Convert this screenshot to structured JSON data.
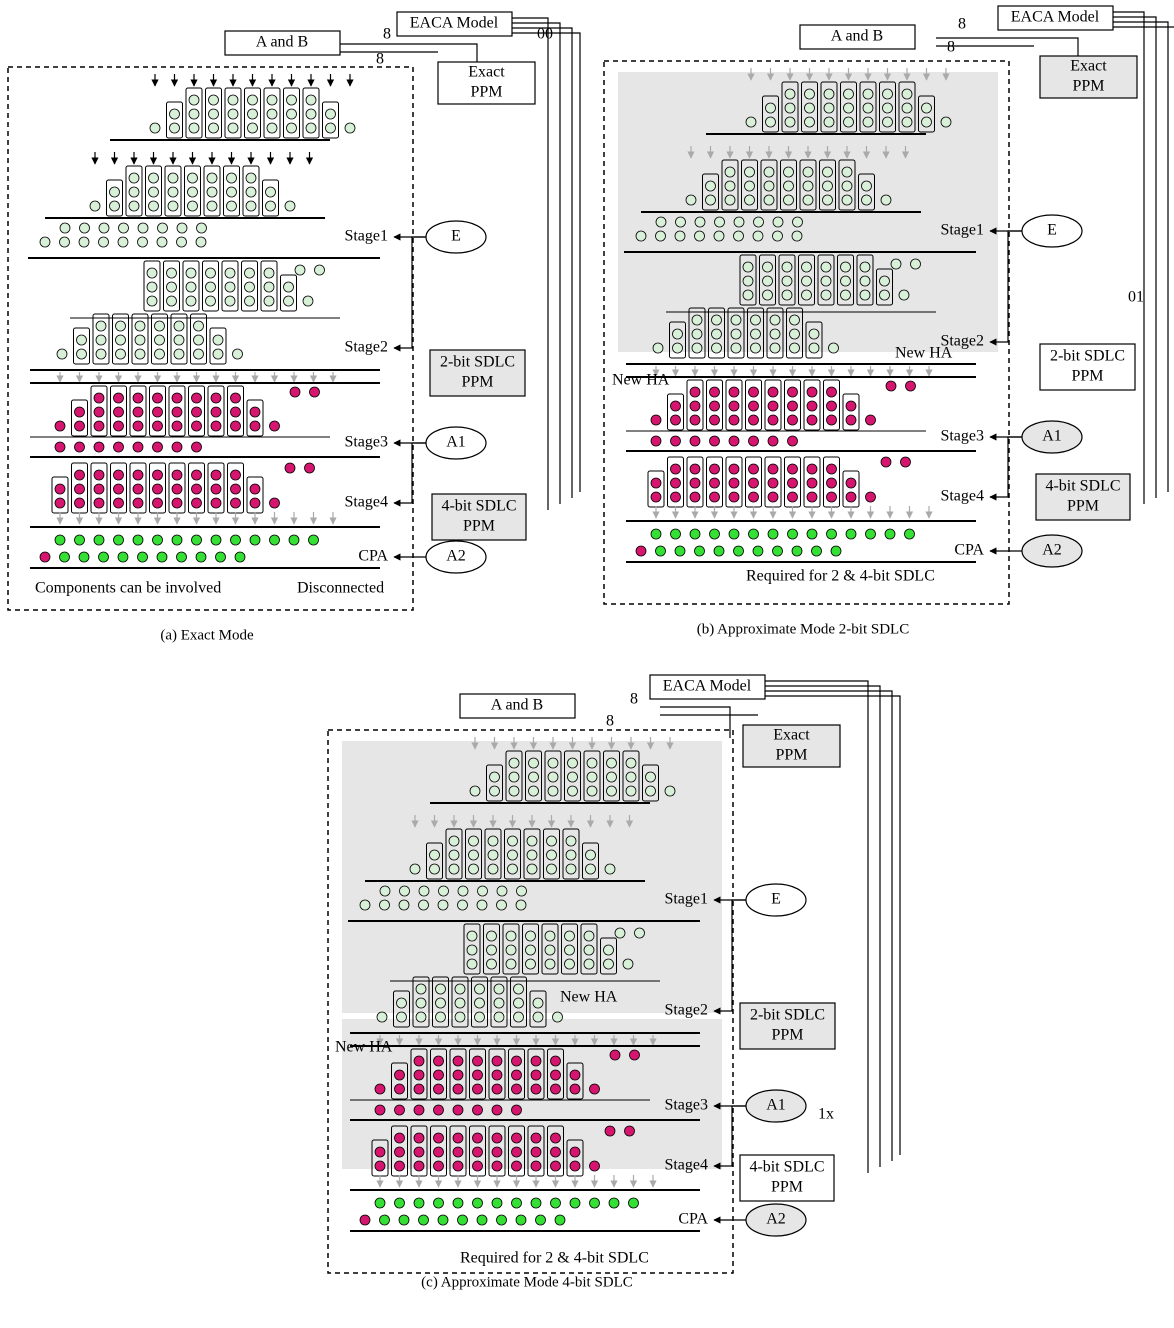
{
  "panels": [
    {
      "caption": "(a)  Exact Mode",
      "input": "A and B",
      "model": "EACA Model",
      "bus_widths": [
        "8",
        "8"
      ],
      "mode_code": "00",
      "exact_ppm": [
        "Exact",
        "PPM"
      ],
      "sdlc2_ppm": [
        "2-bit SDLC",
        "PPM"
      ],
      "sdlc4_ppm": [
        "4-bit SDLC",
        "PPM"
      ],
      "stages": [
        "Stage1",
        "Stage2",
        "Stage3",
        "Stage4",
        "CPA"
      ],
      "controls": [
        "E",
        "A1",
        "A2"
      ],
      "notes": [
        "Components can be involved",
        "Disconnected"
      ]
    },
    {
      "caption": "(b)  Approximate Mode 2-bit SDLC",
      "input": "A and B",
      "model": "EACA Model",
      "bus_widths": [
        "8",
        "8"
      ],
      "mode_code": "01",
      "exact_ppm": [
        "Exact",
        "PPM"
      ],
      "sdlc2_ppm": [
        "2-bit SDLC",
        "PPM"
      ],
      "sdlc4_ppm": [
        "4-bit SDLC",
        "PPM"
      ],
      "stages": [
        "Stage1",
        "Stage2",
        "Stage3",
        "Stage4",
        "CPA"
      ],
      "controls": [
        "E",
        "A1",
        "A2"
      ],
      "notes": [
        "New HA",
        "New HA",
        "Required for 2 & 4-bit  SDLC"
      ]
    },
    {
      "caption": "(c)  Approximate Mode 4-bit SDLC",
      "input": "A and B",
      "model": "EACA Model",
      "bus_widths": [
        "8",
        "8"
      ],
      "mode_code": "1x",
      "exact_ppm": [
        "Exact",
        "PPM"
      ],
      "sdlc2_ppm": [
        "2-bit SDLC",
        "PPM"
      ],
      "sdlc4_ppm": [
        "4-bit SDLC",
        "PPM"
      ],
      "stages": [
        "Stage1",
        "Stage2",
        "Stage3",
        "Stage4",
        "CPA"
      ],
      "controls": [
        "E",
        "A1",
        "A2"
      ],
      "notes": [
        "New HA",
        "New HA",
        "Required for 2 & 4-bit  SDLC"
      ]
    }
  ]
}
